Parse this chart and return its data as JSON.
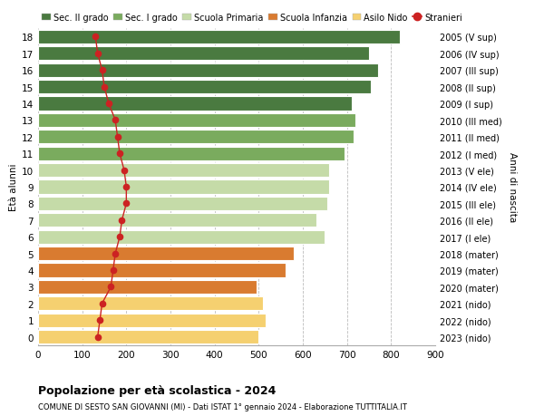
{
  "ages": [
    18,
    17,
    16,
    15,
    14,
    13,
    12,
    11,
    10,
    9,
    8,
    7,
    6,
    5,
    4,
    3,
    2,
    1,
    0
  ],
  "right_labels": [
    "2005 (V sup)",
    "2006 (IV sup)",
    "2007 (III sup)",
    "2008 (II sup)",
    "2009 (I sup)",
    "2010 (III med)",
    "2011 (II med)",
    "2012 (I med)",
    "2013 (V ele)",
    "2014 (IV ele)",
    "2015 (III ele)",
    "2016 (II ele)",
    "2017 (I ele)",
    "2018 (mater)",
    "2019 (mater)",
    "2020 (mater)",
    "2021 (nido)",
    "2022 (nido)",
    "2023 (nido)"
  ],
  "bar_values": [
    820,
    750,
    770,
    755,
    710,
    720,
    715,
    695,
    660,
    660,
    655,
    630,
    650,
    580,
    560,
    495,
    510,
    515,
    500
  ],
  "stranieri_values": [
    130,
    135,
    145,
    150,
    160,
    175,
    180,
    185,
    195,
    200,
    200,
    190,
    185,
    175,
    170,
    165,
    145,
    140,
    135
  ],
  "bar_colors": [
    "#4a7a40",
    "#4a7a40",
    "#4a7a40",
    "#4a7a40",
    "#4a7a40",
    "#7aab5e",
    "#7aab5e",
    "#7aab5e",
    "#c5dba8",
    "#c5dba8",
    "#c5dba8",
    "#c5dba8",
    "#c5dba8",
    "#d97b30",
    "#d97b30",
    "#d97b30",
    "#f5d070",
    "#f5d070",
    "#f5d070"
  ],
  "legend_labels": [
    "Sec. II grado",
    "Sec. I grado",
    "Scuola Primaria",
    "Scuola Infanzia",
    "Asilo Nido",
    "Stranieri"
  ],
  "legend_colors": [
    "#4a7a40",
    "#7aab5e",
    "#c5dba8",
    "#d97b30",
    "#f5d070",
    "#cc2222"
  ],
  "title": "Popolazione per età scolastica - 2024",
  "subtitle": "COMUNE DI SESTO SAN GIOVANNI (MI) - Dati ISTAT 1° gennaio 2024 - Elaborazione TUTTITALIA.IT",
  "ylabel": "Età alunni",
  "right_ylabel": "Anni di nascita",
  "xlim": [
    0,
    900
  ],
  "xticks": [
    0,
    100,
    200,
    300,
    400,
    500,
    600,
    700,
    800,
    900
  ],
  "background_color": "#ffffff",
  "bar_height": 0.82
}
